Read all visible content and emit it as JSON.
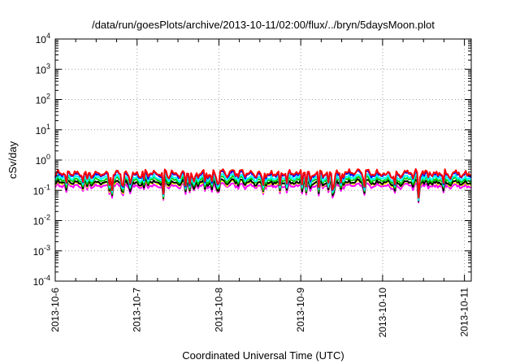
{
  "chart_data": {
    "type": "line",
    "title": "/data/run/goesPlots/archive/2013-10-11/02:00/flux/../bryn/5daysMoon.plot",
    "xlabel": "Coordinated Universal Time (UTC)",
    "ylabel": "cSv/day",
    "yscale": "log",
    "ylim": [
      0.0001,
      10000
    ],
    "xlim": [
      "2013-10-06T00:00",
      "2013-10-11T02:00"
    ],
    "grid": true,
    "x_ticks": [
      "2013-10-6",
      "2013-10-7",
      "2013-10-8",
      "2013-10-9",
      "2013-10-10",
      "2013-10-11"
    ],
    "y_ticks": [
      {
        "base": "10",
        "exp": "-4"
      },
      {
        "base": "10",
        "exp": "-3"
      },
      {
        "base": "10",
        "exp": "-2"
      },
      {
        "base": "10",
        "exp": "-1"
      },
      {
        "base": "10",
        "exp": "0"
      },
      {
        "base": "10",
        "exp": "1"
      },
      {
        "base": "10",
        "exp": "2"
      },
      {
        "base": "10",
        "exp": "3"
      },
      {
        "base": "10",
        "exp": "4"
      }
    ],
    "series": [
      {
        "color": "#ff00ff",
        "approx_level": 0.14
      },
      {
        "color": "#ffff00",
        "approx_level": 0.17
      },
      {
        "color": "#000000",
        "approx_level": 0.18
      },
      {
        "color": "#00cc00",
        "approx_level": 0.22
      },
      {
        "color": "#00ffff",
        "approx_level": 0.26
      },
      {
        "color": "#0000ff",
        "approx_level": 0.33
      },
      {
        "color": "#ff0000",
        "approx_level": 0.36
      }
    ]
  }
}
